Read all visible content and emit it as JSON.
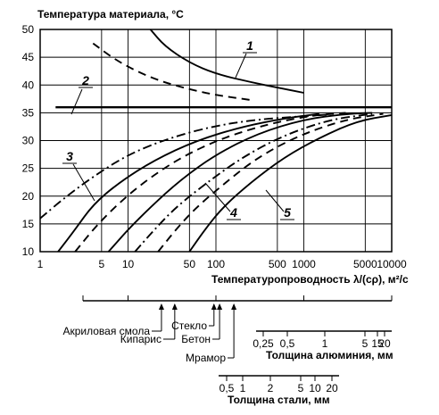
{
  "chart_data": {
    "type": "line",
    "title": "Температура материала, °С",
    "xlabel": "Температуропроводность λ/(cρ), м²/с",
    "x_scale": "log",
    "xlim": [
      1,
      10000
    ],
    "ylim": [
      10,
      50
    ],
    "x_ticks": [
      {
        "v": 1,
        "label": "1"
      },
      {
        "v": 5,
        "label": "5"
      },
      {
        "v": 10,
        "label": "10"
      },
      {
        "v": 50,
        "label": "50"
      },
      {
        "v": 100,
        "label": "100"
      },
      {
        "v": 500,
        "label": "500"
      },
      {
        "v": 1000,
        "label": "1000"
      },
      {
        "v": 5000,
        "label": "5000"
      },
      {
        "v": 10000,
        "label": "10000"
      }
    ],
    "y_ticks": [
      10,
      15,
      20,
      25,
      30,
      35,
      40,
      45,
      50
    ],
    "grid": true,
    "series": [
      {
        "label": "1",
        "style": "solid",
        "points": [
          [
            18,
            50
          ],
          [
            26,
            47
          ],
          [
            50,
            44
          ],
          [
            100,
            42
          ],
          [
            250,
            40.5
          ],
          [
            600,
            39.3
          ],
          [
            1000,
            38.6
          ]
        ]
      },
      {
        "label": "1",
        "style": "dashed",
        "points": [
          [
            4,
            47.5
          ],
          [
            8,
            44
          ],
          [
            20,
            41
          ],
          [
            50,
            39.2
          ],
          [
            100,
            38.2
          ],
          [
            250,
            37.3
          ]
        ]
      },
      {
        "label": "2",
        "style": "solid",
        "points": [
          [
            1.5,
            36
          ],
          [
            10000,
            36
          ]
        ]
      },
      {
        "label": "3",
        "style": "dashdot",
        "points": [
          [
            1,
            16
          ],
          [
            2,
            20
          ],
          [
            4,
            23.5
          ],
          [
            10,
            27.5
          ],
          [
            30,
            30.5
          ],
          [
            100,
            32.7
          ],
          [
            300,
            33.8
          ],
          [
            1000,
            34.4
          ],
          [
            2000,
            34.7
          ]
        ]
      },
      {
        "label": "3",
        "style": "solid",
        "points": [
          [
            1.6,
            10
          ],
          [
            2.5,
            14
          ],
          [
            4,
            18.5
          ],
          [
            8,
            22.5
          ],
          [
            20,
            26.5
          ],
          [
            60,
            30
          ],
          [
            200,
            32.5
          ],
          [
            600,
            34
          ],
          [
            1500,
            34.8
          ]
        ]
      },
      {
        "label": "3",
        "style": "dashed",
        "points": [
          [
            2.5,
            10
          ],
          [
            4,
            14
          ],
          [
            7,
            18
          ],
          [
            15,
            22.5
          ],
          [
            40,
            27
          ],
          [
            120,
            30.5
          ],
          [
            400,
            33
          ],
          [
            1200,
            34.5
          ],
          [
            3000,
            35
          ]
        ]
      },
      {
        "label": "4",
        "style": "solid",
        "points": [
          [
            6,
            10
          ],
          [
            10,
            14
          ],
          [
            18,
            18
          ],
          [
            40,
            23
          ],
          [
            100,
            27.5
          ],
          [
            300,
            31.3
          ],
          [
            1000,
            33.8
          ],
          [
            3000,
            34.8
          ],
          [
            6000,
            35
          ]
        ]
      },
      {
        "label": "4",
        "style": "dashdot",
        "points": [
          [
            12,
            10
          ],
          [
            20,
            14
          ],
          [
            35,
            18
          ],
          [
            80,
            22.5
          ],
          [
            200,
            27
          ],
          [
            600,
            31
          ],
          [
            2000,
            33.8
          ],
          [
            6000,
            34.8
          ]
        ]
      },
      {
        "label": "4",
        "style": "dashed",
        "points": [
          [
            22,
            10
          ],
          [
            35,
            14
          ],
          [
            60,
            18
          ],
          [
            130,
            22.5
          ],
          [
            300,
            27
          ],
          [
            900,
            31
          ],
          [
            3000,
            33.8
          ],
          [
            8000,
            34.8
          ]
        ]
      },
      {
        "label": "5",
        "style": "solid",
        "points": [
          [
            50,
            10
          ],
          [
            75,
            14
          ],
          [
            120,
            18
          ],
          [
            250,
            22.5
          ],
          [
            600,
            27
          ],
          [
            1500,
            30.5
          ],
          [
            4000,
            33.5
          ],
          [
            10000,
            34.6
          ]
        ]
      }
    ],
    "annotations": [
      "1",
      "2",
      "3",
      "4",
      "5"
    ],
    "material_scale": {
      "items": [
        {
          "label": "Акриловая смола",
          "v": 24
        },
        {
          "label": "Кипарис",
          "v": 34
        },
        {
          "label": "Стекло",
          "v": 95
        },
        {
          "label": "Бетон",
          "v": 110
        },
        {
          "label": "Мрамор",
          "v": 160
        }
      ]
    },
    "aluminium_scale": {
      "title": "Толщина алюминия, мм",
      "ticks": [
        "0,25",
        "0,5",
        "1",
        "5",
        "15",
        "20"
      ]
    },
    "steel_scale": {
      "title": "Толщина стали, мм",
      "ticks": [
        "0,5",
        "1",
        "2",
        "5",
        "10",
        "20"
      ]
    }
  }
}
